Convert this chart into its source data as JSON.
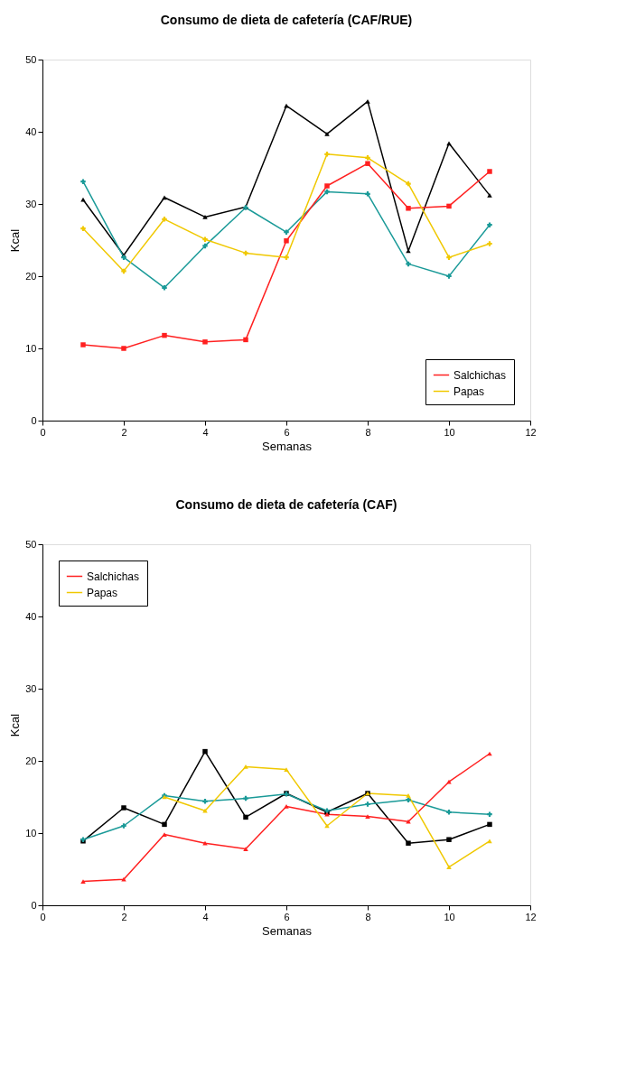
{
  "chart_data": [
    {
      "type": "line",
      "title": "Consumo de dieta de cafetería (CAF/RUE)",
      "xlabel": "Semanas",
      "ylabel": "Kcal",
      "x": [
        1,
        2,
        3,
        4,
        5,
        6,
        7,
        8,
        9,
        10,
        11
      ],
      "series": [
        {
          "color": "#000000",
          "marker": "triangle",
          "values": [
            30.6,
            22.9,
            30.9,
            28.2,
            29.6,
            43.6,
            39.7,
            44.2,
            23.5,
            38.4,
            31.2
          ]
        },
        {
          "color": "#1a9a98",
          "marker": "cross",
          "values": [
            33.1,
            22.6,
            18.4,
            24.2,
            29.5,
            26.1,
            31.7,
            31.4,
            21.7,
            20.0,
            27.1
          ]
        },
        {
          "name": "Salchichas",
          "color": "#ff2020",
          "marker": "square",
          "values": [
            10.5,
            10.0,
            11.8,
            10.9,
            11.2,
            24.9,
            32.5,
            35.6,
            29.4,
            29.7,
            34.5
          ]
        },
        {
          "name": "Papas",
          "color": "#f0c800",
          "marker": "cross",
          "values": [
            26.6,
            20.7,
            27.9,
            25.1,
            23.2,
            22.6,
            36.9,
            36.4,
            32.8,
            22.6,
            24.5
          ]
        }
      ],
      "xlim": [
        0,
        12
      ],
      "xticks": [
        0,
        2,
        4,
        6,
        8,
        10,
        12
      ],
      "ylim": [
        0,
        50
      ],
      "yticks": [
        0,
        10,
        20,
        30,
        40,
        50
      ],
      "grid": false,
      "legend": "bottom right",
      "line_style": "solid"
    },
    {
      "type": "line",
      "title": "Consumo de dieta de cafetería (CAF)",
      "xlabel": "Semanas",
      "ylabel": "Kcal",
      "x": [
        1,
        2,
        3,
        4,
        5,
        6,
        7,
        8,
        9,
        10,
        11
      ],
      "series": [
        {
          "color": "#000000",
          "marker": "square",
          "values": [
            8.9,
            13.5,
            11.2,
            21.3,
            12.2,
            15.5,
            12.9,
            15.5,
            8.6,
            9.1,
            11.2
          ]
        },
        {
          "color": "#1a9a98",
          "marker": "cross",
          "values": [
            9.1,
            11.0,
            15.2,
            14.4,
            14.8,
            15.4,
            13.1,
            14.0,
            14.6,
            12.9,
            12.6
          ]
        },
        {
          "name": "Salchichas",
          "color": "#ff2020",
          "marker": "triangle",
          "values": [
            3.3,
            3.6,
            9.8,
            8.6,
            7.8,
            13.7,
            12.6,
            12.3,
            11.6,
            17.1,
            21.0
          ]
        },
        {
          "name": "Papas",
          "color": "#f0c800",
          "marker": "triangle",
          "values": [
            null,
            null,
            15.0,
            13.1,
            19.2,
            18.8,
            11.0,
            15.5,
            15.2,
            5.3,
            8.9
          ]
        }
      ],
      "xlim": [
        0,
        12
      ],
      "xticks": [
        0,
        2,
        4,
        6,
        8,
        10,
        12
      ],
      "ylim": [
        0,
        50
      ],
      "yticks": [
        0,
        10,
        20,
        30,
        40,
        50
      ],
      "grid": false,
      "legend": "top left",
      "line_style": "solid"
    }
  ]
}
